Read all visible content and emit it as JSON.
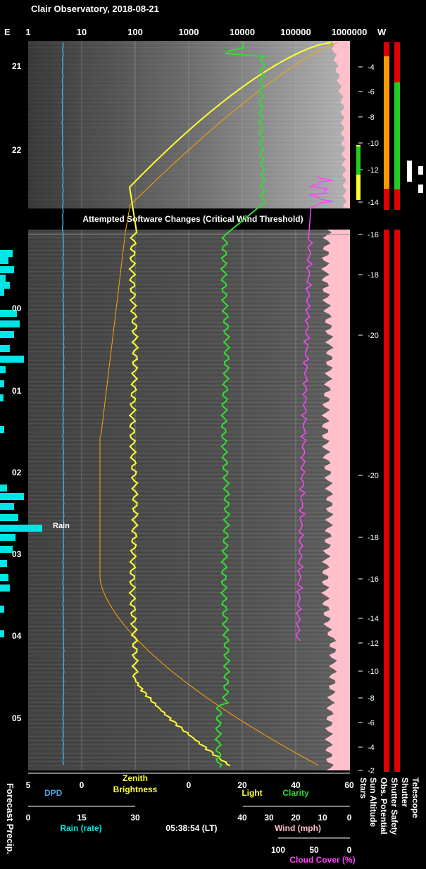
{
  "title": "Clair Observatory, 2018-08-21",
  "top_axis": {
    "left_label": "E",
    "right_label": "W",
    "ticks": [
      "1",
      "10",
      "100",
      "1000",
      "10000",
      "100000",
      "1000000"
    ]
  },
  "time_ticks": [
    "21",
    "22",
    "00",
    "01",
    "02",
    "03",
    "04",
    "05"
  ],
  "banner": "Attempted Software Changes (Critical Wind Threshold)",
  "rain_label": "Rain",
  "sun_altitude_ticks": [
    "-4",
    "-6",
    "-8",
    "-10",
    "-12",
    "-14",
    "-16",
    "-18",
    "-20",
    "-20",
    "-18",
    "-16",
    "-14",
    "-12",
    "-10",
    "-8",
    "-6",
    "-4",
    "-2"
  ],
  "right_vertical_labels": [
    "Stars",
    "Sun Altitude",
    "Obs. Potential",
    "Shutter Safety",
    "Shutter",
    "Telescope"
  ],
  "left_vertical_label": "Forecast Precip.",
  "bottom": {
    "row1_ticks": [
      "5",
      "0",
      "0",
      "20",
      "40",
      "60"
    ],
    "dpd_label": "DPD",
    "zenith_label_1": "Zenith",
    "zenith_label_2": "Brightness",
    "light_label": "Light",
    "clarity_label": "Clarity",
    "rain_ticks": [
      "0",
      "15",
      "30"
    ],
    "rain_rate_label": "Rain (rate)",
    "time_readout": "05:38:54 (LT)",
    "wind_ticks": [
      "40",
      "30",
      "20",
      "10",
      "0"
    ],
    "wind_label": "Wind (mph)",
    "cloud_ticks": [
      "100",
      "50",
      "0"
    ],
    "cloud_label": "Cloud Cover (%)"
  },
  "colors": {
    "dpd": "#4aa8e0",
    "zenith": "#ffff33",
    "sky_brightness": "#ffa500",
    "clarity": "#33dd33",
    "wind": "#ff44ff",
    "rain": "#00e5e5",
    "cloud": "#ffc0cb",
    "status_red": "#e00000",
    "status_green": "#22cc22",
    "status_orange": "#ff9900"
  },
  "chart_data": {
    "type": "line",
    "title": "Clair Observatory, 2018-08-21",
    "x_axis": "log light level (top), linear scales (bottom)",
    "series": [
      {
        "name": "Clarity",
        "values_x_linear": [
          27,
          27,
          26,
          26,
          13,
          13,
          13,
          12,
          12,
          13,
          14,
          12
        ],
        "time_hours": [
          20.8,
          21.2,
          21.6,
          22.4,
          23.0,
          23.8,
          0.5,
          1.5,
          2.5,
          3.5,
          4.5,
          5.6
        ]
      },
      {
        "name": "Light",
        "values_x_log": [
          100,
          60,
          80,
          100,
          100,
          100,
          100,
          100,
          1000,
          10000
        ],
        "time_hours": [
          22.5,
          23.0,
          0.0,
          1.0,
          2.0,
          3.0,
          4.0,
          4.5,
          5.0,
          5.6
        ]
      }
    ]
  }
}
